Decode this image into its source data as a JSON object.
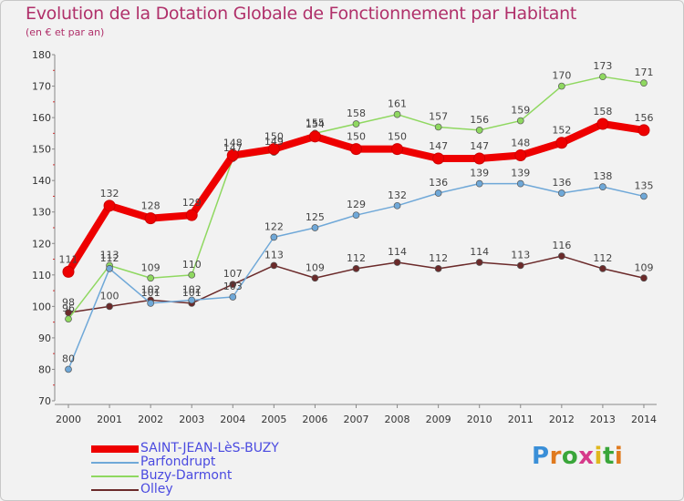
{
  "header": {
    "title": "Evolution de la Dotation Globale de Fonctionnement par Habitant",
    "subtitle": "(en € et par an)"
  },
  "logo": {
    "text": "Proxiti",
    "letter_colors": [
      "#3a8fd8",
      "#e07a1e",
      "#3aa63a",
      "#d63a8a",
      "#e0b81e",
      "#3aa63a",
      "#e07a1e"
    ]
  },
  "chart_data": {
    "type": "line",
    "title": "Evolution de la Dotation Globale de Fonctionnement par Habitant",
    "subtitle": "(en € et par an)",
    "xlabel": "",
    "ylabel": "",
    "ylim": [
      70,
      180
    ],
    "yticks": [
      70,
      80,
      90,
      100,
      110,
      120,
      130,
      140,
      150,
      160,
      170,
      180
    ],
    "grid": false,
    "categories": [
      "2000",
      "2001",
      "2002",
      "2003",
      "2004",
      "2005",
      "2006",
      "2007",
      "2008",
      "2009",
      "2010",
      "2011",
      "2012",
      "2013",
      "2014"
    ],
    "series": [
      {
        "name": "Olley",
        "color": "#6b2a2a",
        "values": [
          98,
          100,
          102,
          101,
          107,
          113,
          109,
          112,
          114,
          112,
          114,
          113,
          116,
          112,
          109
        ]
      },
      {
        "name": "Buzy-Darmont",
        "color": "#8fd860",
        "values": [
          96,
          113,
          109,
          110,
          147,
          149,
          155,
          158,
          161,
          157,
          156,
          159,
          170,
          173,
          171
        ]
      },
      {
        "name": "Parfondrupt",
        "color": "#6fa8d8",
        "values": [
          80,
          112,
          101,
          102,
          103,
          122,
          125,
          129,
          132,
          136,
          139,
          139,
          136,
          138,
          135
        ]
      },
      {
        "name": "SAINT-JEAN-LèS-BUZY",
        "color": "#ee0000",
        "values": [
          111,
          132,
          128,
          129,
          148,
          150,
          154,
          150,
          150,
          147,
          147,
          148,
          152,
          158,
          156
        ]
      }
    ],
    "legend": [
      "SAINT-JEAN-LèS-BUZY",
      "Parfondrupt",
      "Buzy-Darmont",
      "Olley"
    ],
    "legend_placement": "bottom-left"
  }
}
